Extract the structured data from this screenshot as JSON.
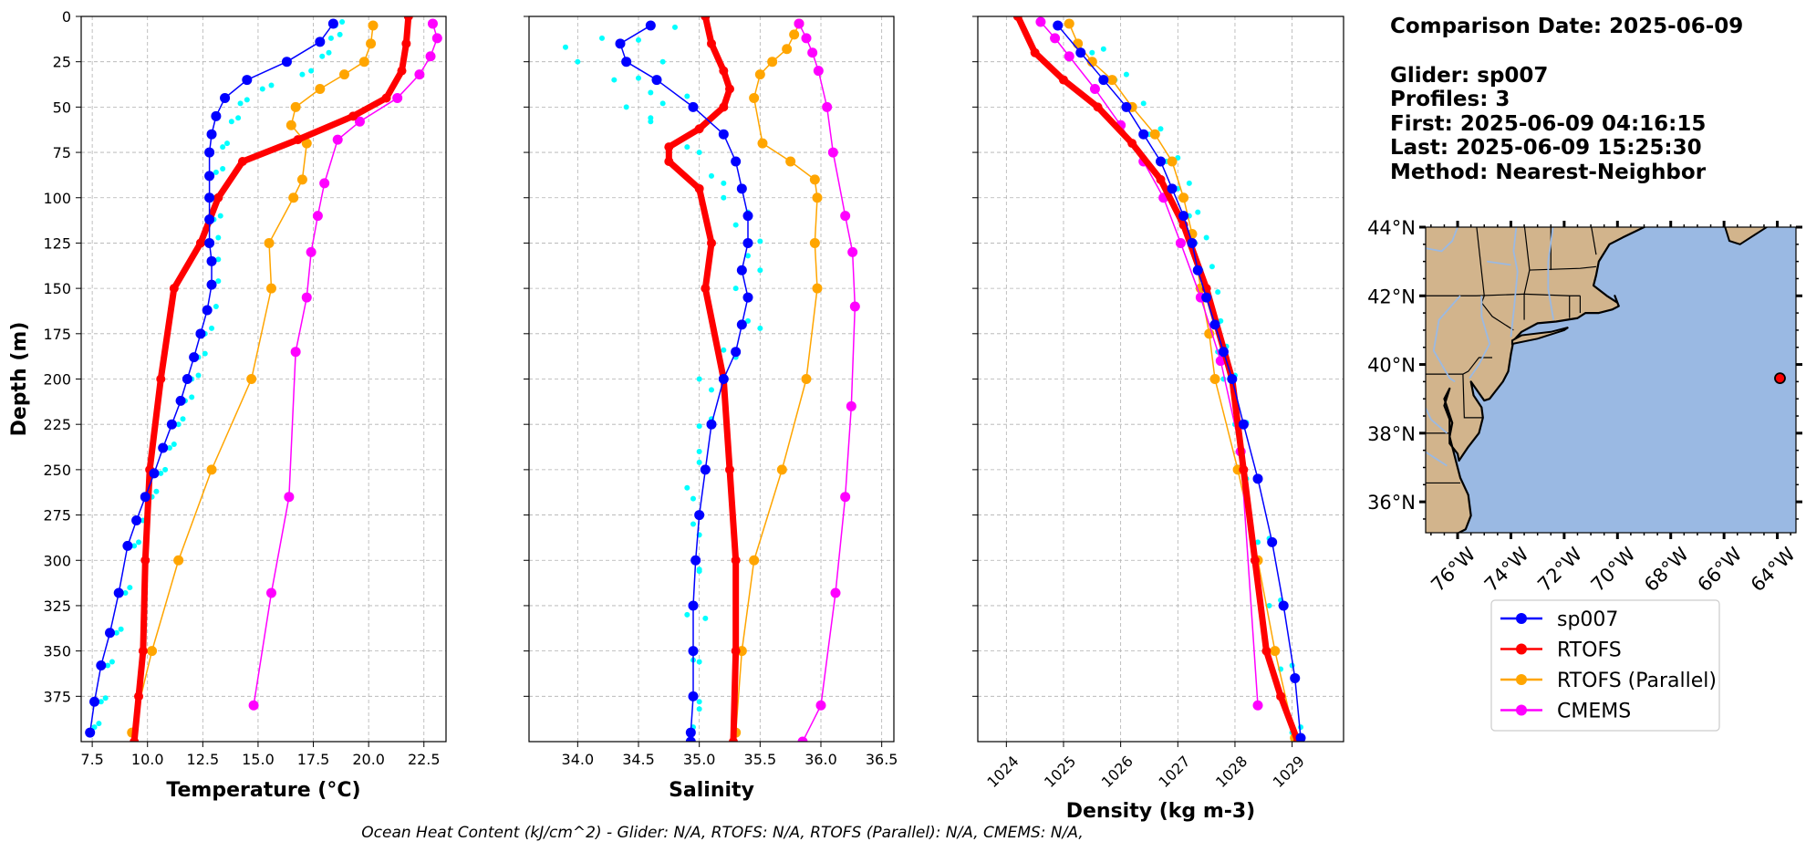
{
  "chart_data": [
    {
      "type": "line",
      "xlabel": "Temperature (°C)",
      "ylabel": "Depth (m)",
      "xlim": [
        7.0,
        23.5
      ],
      "ylim": [
        400,
        0
      ],
      "xticks": [
        7.5,
        10.0,
        12.5,
        15.0,
        17.5,
        20.0,
        22.5
      ],
      "xtick_labels": [
        "7.5",
        "10.0",
        "12.5",
        "15.0",
        "17.5",
        "20.0",
        "22.5"
      ],
      "yticks": [
        0,
        25,
        50,
        75,
        100,
        125,
        150,
        175,
        200,
        225,
        250,
        275,
        300,
        325,
        350,
        375
      ],
      "ytick_labels": [
        "0",
        "25",
        "50",
        "75",
        "100",
        "125",
        "150",
        "175",
        "200",
        "225",
        "250",
        "275",
        "300",
        "325",
        "350",
        "375"
      ],
      "grid": true,
      "raw_profiles": [
        {
          "x": [
            18.5,
            18.3,
            17.9,
            17.0,
            15.2,
            14.2,
            13.8,
            13.4,
            13.1,
            13.0,
            13.0,
            12.9,
            12.9,
            12.9,
            12.8,
            12.6,
            12.3,
            12.0,
            11.7,
            11.4,
            11.0,
            10.6,
            10.2,
            9.8,
            9.4,
            9.0,
            8.6,
            8.2,
            7.9,
            7.6
          ],
          "y": [
            5,
            12,
            22,
            32,
            40,
            48,
            58,
            72,
            86,
            100,
            112,
            125,
            135,
            148,
            162,
            175,
            188,
            200,
            212,
            225,
            238,
            252,
            265,
            278,
            292,
            318,
            340,
            358,
            378,
            392
          ]
        },
        {
          "x": [
            18.8,
            18.7,
            18.2,
            17.4,
            15.6,
            14.5,
            14.1,
            13.6,
            13.4,
            13.3,
            13.3,
            13.2,
            13.2,
            13.2,
            13.1,
            12.9,
            12.6,
            12.3,
            12.0,
            11.6,
            11.2,
            10.8,
            10.4,
            10.0,
            9.6,
            9.2,
            8.8,
            8.4,
            8.1,
            7.8
          ],
          "y": [
            3,
            10,
            20,
            30,
            38,
            46,
            56,
            70,
            84,
            98,
            110,
            122,
            134,
            146,
            160,
            172,
            186,
            198,
            210,
            222,
            236,
            250,
            262,
            276,
            290,
            315,
            338,
            356,
            376,
            390
          ]
        }
      ],
      "series": [
        {
          "name": "sp007",
          "color": "#0000ff",
          "x": [
            18.4,
            17.8,
            16.3,
            14.5,
            13.5,
            13.1,
            12.9,
            12.8,
            12.8,
            12.8,
            12.8,
            12.8,
            12.9,
            12.9,
            12.7,
            12.4,
            12.1,
            11.8,
            11.5,
            11.1,
            10.7,
            10.3,
            9.9,
            9.5,
            9.1,
            8.7,
            8.3,
            7.9,
            7.6,
            7.4
          ],
          "y": [
            4,
            14,
            25,
            35,
            45,
            55,
            65,
            75,
            88,
            100,
            112,
            125,
            135,
            148,
            162,
            175,
            188,
            200,
            212,
            225,
            238,
            252,
            265,
            278,
            292,
            318,
            340,
            358,
            378,
            395
          ],
          "marker": true,
          "linewidth": 1.5
        },
        {
          "name": "RTOFS",
          "color": "#ff0000",
          "x": [
            21.8,
            21.7,
            21.5,
            20.8,
            19.3,
            16.8,
            14.3,
            13.2,
            12.4,
            11.2,
            10.6,
            10.1,
            9.9,
            9.8,
            9.6,
            9.4
          ],
          "y": [
            0,
            15,
            30,
            45,
            55,
            68,
            80,
            100,
            125,
            150,
            200,
            250,
            300,
            350,
            375,
            400
          ],
          "marker": true,
          "linewidth": 7
        },
        {
          "name": "RTOFS (Parallel)",
          "color": "#ffa500",
          "x": [
            20.2,
            20.1,
            19.8,
            18.9,
            17.8,
            16.7,
            16.5,
            17.2,
            17.0,
            16.6,
            15.5,
            15.6,
            14.7,
            12.9,
            11.4,
            10.2,
            9.3
          ],
          "y": [
            5,
            15,
            25,
            32,
            40,
            50,
            60,
            70,
            90,
            100,
            125,
            150,
            200,
            250,
            300,
            350,
            395
          ],
          "marker": true,
          "linewidth": 1.5
        },
        {
          "name": "CMEMS",
          "color": "#ff00ff",
          "x": [
            22.9,
            23.1,
            22.8,
            22.3,
            21.3,
            19.6,
            18.6,
            18.0,
            17.7,
            17.4,
            17.2,
            16.7,
            16.4,
            15.6,
            14.8
          ],
          "y": [
            4,
            12,
            22,
            32,
            45,
            58,
            68,
            92,
            110,
            130,
            155,
            185,
            265,
            318,
            380
          ],
          "marker": true,
          "linewidth": 1.5
        }
      ]
    },
    {
      "type": "line",
      "xlabel": "Salinity",
      "ylabel": "",
      "xlim": [
        33.6,
        36.6
      ],
      "ylim": [
        400,
        0
      ],
      "xticks": [
        34.0,
        34.5,
        35.0,
        35.5,
        36.0,
        36.5
      ],
      "xtick_labels": [
        "34.0",
        "34.5",
        "35.0",
        "35.5",
        "36.0",
        "36.5"
      ],
      "grid": true,
      "raw_profiles": [
        {
          "x": [
            34.8,
            34.5,
            33.9,
            34.7,
            34.3,
            34.9,
            34.4,
            34.6,
            34.9,
            35.1,
            35.2,
            35.3,
            35.4,
            35.3,
            35.4,
            35.2,
            35.0,
            35.1,
            35.0,
            34.9,
            34.95,
            35.0,
            34.9,
            34.95,
            35.0,
            34.95
          ],
          "y": [
            6,
            13,
            17,
            25,
            35,
            44,
            50,
            56,
            72,
            88,
            100,
            115,
            132,
            150,
            168,
            184,
            200,
            222,
            240,
            260,
            280,
            305,
            330,
            355,
            378,
            392
          ]
        },
        {
          "x": [
            34.6,
            34.2,
            34.0,
            34.5,
            34.6,
            34.7,
            34.6,
            35.0,
            35.2,
            35.4,
            35.5,
            35.5,
            35.4,
            35.5,
            35.3,
            35.1,
            35.0,
            35.0,
            34.95,
            35.0,
            35.0,
            35.05,
            35.0,
            35.0
          ],
          "y": [
            5,
            12,
            25,
            34,
            42,
            48,
            58,
            75,
            92,
            108,
            124,
            140,
            156,
            172,
            188,
            206,
            226,
            246,
            266,
            286,
            306,
            332,
            356,
            382
          ]
        }
      ],
      "series": [
        {
          "name": "sp007",
          "color": "#0000ff",
          "x": [
            34.6,
            34.35,
            34.4,
            34.65,
            34.95,
            35.2,
            35.3,
            35.35,
            35.4,
            35.4,
            35.35,
            35.4,
            35.35,
            35.3,
            35.2,
            35.1,
            35.05,
            35.0,
            34.97,
            34.95,
            34.95,
            34.95,
            34.93,
            34.93
          ],
          "y": [
            5,
            15,
            25,
            35,
            50,
            65,
            80,
            95,
            110,
            125,
            140,
            155,
            170,
            185,
            200,
            225,
            250,
            275,
            300,
            325,
            350,
            375,
            395,
            400
          ],
          "marker": true,
          "linewidth": 1.5
        },
        {
          "name": "RTOFS",
          "color": "#ff0000",
          "x": [
            35.05,
            35.1,
            35.2,
            35.25,
            35.2,
            35.0,
            34.75,
            34.75,
            35.0,
            35.1,
            35.05,
            35.2,
            35.25,
            35.3,
            35.3,
            35.28
          ],
          "y": [
            0,
            15,
            30,
            40,
            50,
            62,
            72,
            80,
            95,
            125,
            150,
            200,
            250,
            300,
            350,
            400
          ],
          "marker": true,
          "linewidth": 7
        },
        {
          "name": "RTOFS (Parallel)",
          "color": "#ffa500",
          "x": [
            35.82,
            35.78,
            35.72,
            35.6,
            35.5,
            35.45,
            35.52,
            35.75,
            35.95,
            35.97,
            35.95,
            35.97,
            35.88,
            35.68,
            35.45,
            35.35,
            35.3
          ],
          "y": [
            4,
            10,
            18,
            25,
            32,
            45,
            70,
            80,
            90,
            100,
            125,
            150,
            200,
            250,
            300,
            350,
            395
          ],
          "marker": true,
          "linewidth": 1.5
        },
        {
          "name": "CMEMS",
          "color": "#ff00ff",
          "x": [
            35.82,
            35.88,
            35.93,
            35.98,
            36.05,
            36.1,
            36.2,
            36.26,
            36.28,
            36.25,
            36.2,
            36.12,
            36.0,
            35.85
          ],
          "y": [
            4,
            12,
            20,
            30,
            50,
            75,
            110,
            130,
            160,
            215,
            265,
            318,
            380,
            400
          ],
          "marker": true,
          "linewidth": 1.5
        }
      ]
    },
    {
      "type": "line",
      "xlabel": "Density (kg m-3)",
      "ylabel": "",
      "xlim": [
        1023.5,
        1029.9
      ],
      "ylim": [
        400,
        0
      ],
      "xticks": [
        1024,
        1025,
        1026,
        1027,
        1028,
        1029
      ],
      "xtick_labels": [
        "1024",
        "1025",
        "1026",
        "1027",
        "1028",
        "1029"
      ],
      "grid": true,
      "raw_profiles": [
        {
          "x": [
            1024.9,
            1025.5,
            1025.9,
            1026.2,
            1026.5,
            1026.8,
            1027.0,
            1027.2,
            1027.3,
            1027.4,
            1027.5,
            1027.6,
            1027.7,
            1027.8,
            1028.0,
            1028.2,
            1028.4,
            1028.6,
            1028.8,
            1029.0
          ],
          "y": [
            5,
            20,
            35,
            50,
            65,
            80,
            95,
            110,
            125,
            140,
            155,
            170,
            185,
            200,
            225,
            255,
            290,
            325,
            360,
            395
          ]
        },
        {
          "x": [
            1025.1,
            1025.7,
            1026.1,
            1026.4,
            1026.7,
            1027.0,
            1027.2,
            1027.35,
            1027.5,
            1027.6,
            1027.7,
            1027.75,
            1027.85,
            1028.0,
            1028.2,
            1028.4,
            1028.6,
            1028.8,
            1029.0,
            1029.15
          ],
          "y": [
            4,
            18,
            32,
            48,
            62,
            78,
            92,
            108,
            122,
            138,
            152,
            168,
            182,
            198,
            224,
            254,
            288,
            322,
            358,
            392
          ]
        }
      ],
      "series": [
        {
          "name": "sp007",
          "color": "#0000ff",
          "x": [
            1024.9,
            1025.3,
            1025.7,
            1026.1,
            1026.4,
            1026.7,
            1026.9,
            1027.1,
            1027.25,
            1027.35,
            1027.5,
            1027.65,
            1027.8,
            1027.95,
            1028.15,
            1028.4,
            1028.65,
            1028.85,
            1029.05,
            1029.15
          ],
          "y": [
            5,
            20,
            35,
            50,
            65,
            80,
            95,
            110,
            125,
            140,
            155,
            170,
            185,
            200,
            225,
            255,
            290,
            325,
            365,
            398
          ],
          "marker": true,
          "linewidth": 1.5
        },
        {
          "name": "RTOFS",
          "color": "#ff0000",
          "x": [
            1024.2,
            1024.5,
            1025.0,
            1025.6,
            1026.2,
            1026.7,
            1027.1,
            1027.5,
            1027.95,
            1028.15,
            1028.35,
            1028.55,
            1028.8,
            1029.1
          ],
          "y": [
            0,
            20,
            35,
            50,
            70,
            90,
            115,
            150,
            200,
            250,
            300,
            350,
            375,
            400
          ],
          "marker": true,
          "linewidth": 7
        },
        {
          "name": "RTOFS (Parallel)",
          "color": "#ffa500",
          "x": [
            1025.1,
            1025.25,
            1025.5,
            1025.85,
            1026.2,
            1026.6,
            1026.9,
            1027.1,
            1027.25,
            1027.4,
            1027.55,
            1027.65,
            1028.05,
            1028.4,
            1028.7,
            1029.05
          ],
          "y": [
            4,
            15,
            25,
            35,
            50,
            65,
            80,
            100,
            120,
            150,
            175,
            200,
            250,
            300,
            350,
            398
          ],
          "marker": true,
          "linewidth": 1.5
        },
        {
          "name": "CMEMS",
          "color": "#ff00ff",
          "x": [
            1024.6,
            1024.85,
            1025.1,
            1025.55,
            1026.0,
            1026.4,
            1026.75,
            1027.05,
            1027.4,
            1027.75,
            1028.1,
            1028.4
          ],
          "y": [
            3,
            12,
            22,
            40,
            60,
            80,
            100,
            125,
            155,
            190,
            240,
            380
          ],
          "marker": true,
          "linewidth": 1.5
        }
      ]
    }
  ],
  "info": {
    "lines": [
      "Comparison Date: 2025-06-09",
      "",
      "Glider: sp007",
      "Profiles: 3",
      "First: 2025-06-09 04:16:15",
      "Last: 2025-06-09 15:25:30",
      "Method: Nearest-Neighbor"
    ]
  },
  "map": {
    "lon_range": [
      -77.2,
      -63.3
    ],
    "lat_range": [
      35.1,
      44.0
    ],
    "lat_tick_values": [
      44,
      42,
      40,
      38,
      36
    ],
    "lat_tick_labels": [
      "44°N",
      "42°N",
      "40°N",
      "38°N",
      "36°N"
    ],
    "lon_tick_values": [
      -76,
      -74,
      -72,
      -70,
      -68,
      -66,
      -64
    ],
    "lon_tick_labels": [
      "76°W",
      "74°W",
      "72°W",
      "70°W",
      "68°W",
      "66°W",
      "64°W"
    ],
    "ocean_color": "#9ab9e3",
    "land_color": "#d2b48c",
    "glider_position": {
      "lon": -63.9,
      "lat": 39.6
    },
    "glider_color": "#ff0000"
  },
  "legend": {
    "entries": [
      {
        "label": "sp007",
        "color": "#0000ff"
      },
      {
        "label": "RTOFS",
        "color": "#ff0000"
      },
      {
        "label": "RTOFS (Parallel)",
        "color": "#ffa500"
      },
      {
        "label": "CMEMS",
        "color": "#ff00ff"
      }
    ]
  },
  "raw_obs_color": "#00ffff",
  "footer": {
    "text": "Ocean Heat Content (kJ/cm^2) - Glider: N/A,  RTOFS: N/A,  RTOFS (Parallel): N/A,  CMEMS: N/A,"
  }
}
